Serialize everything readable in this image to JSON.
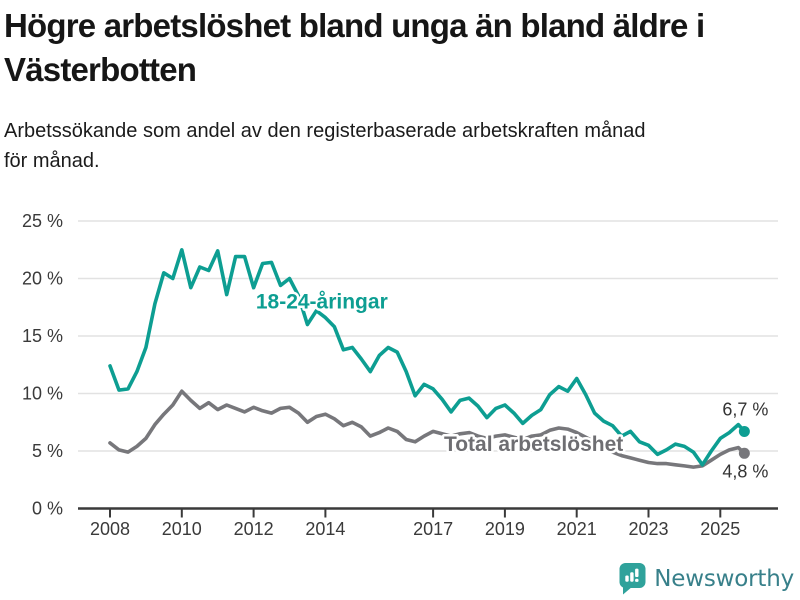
{
  "header": {
    "title_line1": "Högre arbetslöshet bland unga än bland äldre i",
    "title_line2": "Västerbotten",
    "subtitle_line1": "Arbetssökande som andel av den registerbaserade arbetskraften månad",
    "subtitle_line2": "för månad."
  },
  "chart_data": {
    "type": "line",
    "title": "Högre arbetslöshet bland unga än bland äldre i Västerbotten",
    "subtitle": "Arbetssökande som andel av den registerbaserade arbetskraften månad för månad.",
    "x_unit": "year (monthly observations)",
    "ylim": [
      0,
      25
    ],
    "xlim": [
      2007.1,
      2026.5
    ],
    "grid": "horizontal",
    "legend_position": "inline-labels",
    "y_ticks": [
      {
        "value": 0,
        "label": "0 %"
      },
      {
        "value": 5,
        "label": "5 %"
      },
      {
        "value": 10,
        "label": "10 %"
      },
      {
        "value": 15,
        "label": "15 %"
      },
      {
        "value": 20,
        "label": "20 %"
      },
      {
        "value": 25,
        "label": "25 %"
      }
    ],
    "x_ticks": [
      {
        "value": 2008,
        "label": "2008"
      },
      {
        "value": 2010,
        "label": "2010"
      },
      {
        "value": 2012,
        "label": "2012"
      },
      {
        "value": 2014,
        "label": "2014"
      },
      {
        "value": 2017,
        "label": "2017"
      },
      {
        "value": 2019,
        "label": "2019"
      },
      {
        "value": 2021,
        "label": "2021"
      },
      {
        "value": 2023,
        "label": "2023"
      },
      {
        "value": 2025,
        "label": "2025"
      }
    ],
    "series": [
      {
        "name": "18-24-åringar",
        "color": "#0D9E92",
        "end_label": "6,7 %",
        "end_label_position": "above",
        "x_start": 2008.0,
        "x_step": 0.25,
        "x_end": 2025.67,
        "values": [
          12.4,
          10.3,
          10.4,
          11.9,
          14.0,
          17.8,
          20.5,
          20.0,
          22.5,
          19.2,
          21.0,
          20.7,
          22.4,
          18.6,
          21.9,
          21.9,
          19.2,
          21.3,
          21.4,
          19.4,
          20.0,
          18.5,
          16.0,
          17.2,
          16.6,
          15.8,
          13.8,
          14.0,
          13.0,
          11.9,
          13.3,
          14.0,
          13.6,
          11.9,
          9.8,
          10.8,
          10.4,
          9.5,
          8.4,
          9.4,
          9.6,
          8.9,
          7.9,
          8.7,
          9.0,
          8.3,
          7.4,
          8.1,
          8.6,
          9.9,
          10.6,
          10.2,
          11.3,
          9.9,
          8.3,
          7.6,
          7.2,
          6.3,
          6.7,
          5.8,
          5.5,
          4.7,
          5.1,
          5.6,
          5.4,
          4.9,
          3.8,
          5.0,
          6.1,
          6.6,
          7.3,
          6.7
        ]
      },
      {
        "name": "Total arbetslöshet",
        "color": "#77777B",
        "end_label": "4,8 %",
        "end_label_position": "below",
        "x_start": 2008.0,
        "x_step": 0.25,
        "x_end": 2025.67,
        "values": [
          5.7,
          5.1,
          4.9,
          5.4,
          6.1,
          7.3,
          8.2,
          9.0,
          10.2,
          9.4,
          8.7,
          9.2,
          8.6,
          9.0,
          8.7,
          8.4,
          8.8,
          8.5,
          8.3,
          8.7,
          8.8,
          8.3,
          7.5,
          8.0,
          8.2,
          7.8,
          7.2,
          7.5,
          7.1,
          6.3,
          6.6,
          7.0,
          6.7,
          6.0,
          5.8,
          6.3,
          6.7,
          6.5,
          6.3,
          6.5,
          6.6,
          6.3,
          6.1,
          6.3,
          6.4,
          6.2,
          6.0,
          6.3,
          6.4,
          6.8,
          7.0,
          6.9,
          6.6,
          6.2,
          5.8,
          5.3,
          4.9,
          4.6,
          4.4,
          4.2,
          4.0,
          3.9,
          3.9,
          3.8,
          3.7,
          3.6,
          3.7,
          4.2,
          4.7,
          5.1,
          5.3,
          4.8
        ]
      }
    ],
    "annotations": [
      {
        "text": "18-24-åringar",
        "x": 2013.9,
        "y": 18.0,
        "color": "#0D9E92"
      },
      {
        "text": "Total arbetslöshet",
        "x": 2019.8,
        "y": 5.6,
        "color": "#6E6E72"
      }
    ]
  },
  "colors": {
    "youth_line": "#0D9E92",
    "total_line": "#77777B",
    "axis_text": "#3A3A3A",
    "axis_line": "#3A3A3A",
    "gridline": "#E2E2E2",
    "end_label_text": "#333333",
    "logo_icon": "#2FA29B",
    "logo_text": "#38808A"
  },
  "footer": {
    "brand": "Newsworthy"
  }
}
